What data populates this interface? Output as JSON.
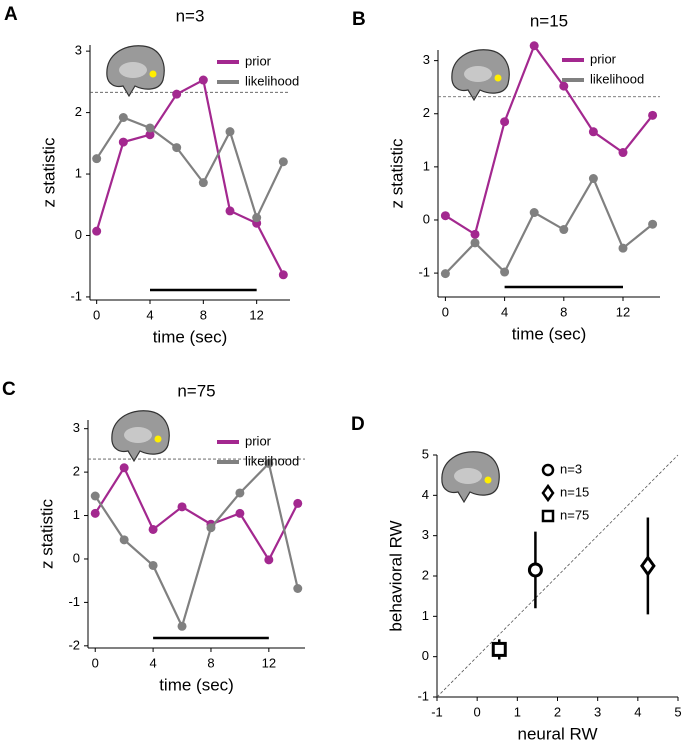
{
  "chart_data": [
    {
      "type": "line",
      "panel": "A",
      "title": "n=3",
      "x_label": "time (sec)",
      "y_label": "z statistic",
      "x": [
        0,
        2,
        4,
        6,
        8,
        10,
        12,
        14
      ],
      "xlim": [
        -0.5,
        14.5
      ],
      "xticks": [
        0,
        4,
        8,
        12
      ],
      "ylim": [
        -1.05,
        3.1
      ],
      "yticks": [
        -1,
        0,
        1,
        2,
        3
      ],
      "threshold": 2.33,
      "period": [
        4,
        12
      ],
      "series": [
        {
          "name": "prior",
          "color": "#a3288f",
          "values": [
            0.07,
            1.52,
            1.64,
            2.3,
            2.53,
            0.4,
            0.2,
            -0.64
          ]
        },
        {
          "name": "likelihood",
          "color": "#808080",
          "values": [
            1.25,
            1.92,
            1.75,
            1.43,
            0.86,
            1.69,
            0.29,
            1.2
          ]
        }
      ]
    },
    {
      "type": "line",
      "panel": "B",
      "title": "n=15",
      "x_label": "time (sec)",
      "y_label": "z statistic",
      "x": [
        0,
        2,
        4,
        6,
        8,
        10,
        12,
        14
      ],
      "xlim": [
        -0.5,
        14.5
      ],
      "xticks": [
        0,
        4,
        8,
        12
      ],
      "ylim": [
        -1.45,
        3.2
      ],
      "yticks": [
        -1,
        0,
        1,
        2,
        3
      ],
      "threshold": 2.32,
      "period": [
        4,
        12
      ],
      "series": [
        {
          "name": "prior",
          "color": "#a3288f",
          "values": [
            0.08,
            -0.27,
            1.85,
            3.28,
            2.52,
            1.66,
            1.27,
            1.97
          ]
        },
        {
          "name": "likelihood",
          "color": "#808080",
          "values": [
            -1.01,
            -0.43,
            -0.98,
            0.14,
            -0.18,
            0.78,
            -0.53,
            -0.08
          ]
        }
      ]
    },
    {
      "type": "line",
      "panel": "C",
      "title": "n=75",
      "x_label": "time (sec)",
      "y_label": "z statistic",
      "x": [
        0,
        2,
        4,
        6,
        8,
        10,
        12,
        14
      ],
      "xlim": [
        -0.5,
        14.5
      ],
      "xticks": [
        0,
        4,
        8,
        12
      ],
      "ylim": [
        -2.05,
        3.2
      ],
      "yticks": [
        -2,
        -1,
        0,
        1,
        2,
        3
      ],
      "threshold": 2.3,
      "period": [
        4,
        12
      ],
      "series": [
        {
          "name": "prior",
          "color": "#a3288f",
          "values": [
            1.05,
            2.1,
            0.68,
            1.2,
            0.8,
            1.05,
            -0.02,
            1.28
          ]
        },
        {
          "name": "likelihood",
          "color": "#808080",
          "values": [
            1.45,
            0.44,
            -0.15,
            -1.55,
            0.72,
            1.52,
            2.2,
            -0.68
          ]
        }
      ]
    },
    {
      "type": "scatter",
      "panel": "D",
      "x_label": "neural RW",
      "y_label": "behavioral RW",
      "xlim": [
        -1,
        5
      ],
      "xticks": [
        -1,
        0,
        1,
        2,
        3,
        4,
        5
      ],
      "ylim": [
        -1,
        5
      ],
      "yticks": [
        -1,
        0,
        1,
        2,
        3,
        4,
        5
      ],
      "diagonal": true,
      "series": [
        {
          "name": "n=3",
          "marker": "circle",
          "color": "#000000",
          "x": [
            1.45
          ],
          "y": [
            2.15
          ],
          "yerr": [
            0.95
          ]
        },
        {
          "name": "n=15",
          "marker": "diamond",
          "color": "#000000",
          "x": [
            4.25
          ],
          "y": [
            2.25
          ],
          "yerr": [
            1.2
          ]
        },
        {
          "name": "n=75",
          "marker": "square",
          "color": "#000000",
          "x": [
            0.55
          ],
          "y": [
            0.18
          ],
          "yerr": [
            0.25
          ]
        }
      ]
    }
  ]
}
